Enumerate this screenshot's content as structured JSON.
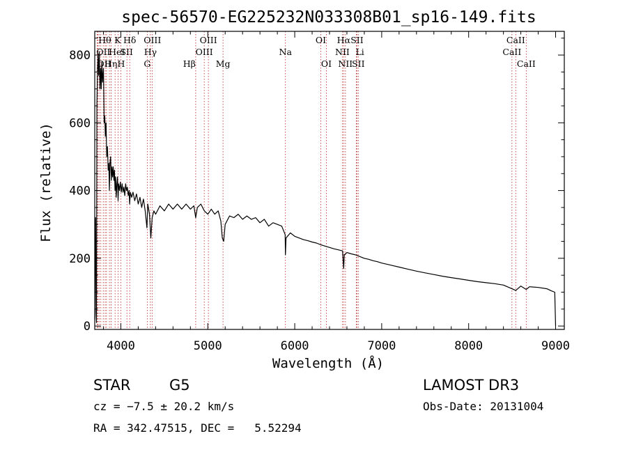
{
  "chart_data": {
    "type": "line",
    "title": "spec-56570-EG225232N033308B01_sp16-149.fits",
    "xlabel": "Wavelength (Å)",
    "ylabel": "Flux (relative)",
    "xlim": [
      3700,
      9100
    ],
    "ylim": [
      -10,
      870
    ],
    "x_ticks": [
      4000,
      5000,
      6000,
      7000,
      8000,
      9000
    ],
    "y_ticks": [
      0,
      200,
      400,
      600,
      800
    ],
    "grid": false,
    "series": [
      {
        "points": [
          [
            3700,
            20
          ],
          [
            3705,
            270
          ],
          [
            3710,
            320
          ],
          [
            3715,
            40
          ],
          [
            3720,
            10
          ],
          [
            3725,
            650
          ],
          [
            3732,
            760
          ],
          [
            3738,
            800
          ],
          [
            3745,
            740
          ],
          [
            3752,
            810
          ],
          [
            3760,
            700
          ],
          [
            3768,
            760
          ],
          [
            3775,
            700
          ],
          [
            3782,
            780
          ],
          [
            3790,
            720
          ],
          [
            3800,
            760
          ],
          [
            3808,
            600
          ],
          [
            3815,
            620
          ],
          [
            3822,
            560
          ],
          [
            3830,
            600
          ],
          [
            3838,
            500
          ],
          [
            3846,
            530
          ],
          [
            3855,
            460
          ],
          [
            3862,
            480
          ],
          [
            3868,
            400
          ],
          [
            3875,
            480
          ],
          [
            3883,
            500
          ],
          [
            3890,
            430
          ],
          [
            3898,
            470
          ],
          [
            3905,
            440
          ],
          [
            3912,
            470
          ],
          [
            3920,
            430
          ],
          [
            3927,
            460
          ],
          [
            3933,
            400
          ],
          [
            3940,
            440
          ],
          [
            3947,
            380
          ],
          [
            3955,
            420
          ],
          [
            3962,
            440
          ],
          [
            3968,
            370
          ],
          [
            3975,
            420
          ],
          [
            3985,
            400
          ],
          [
            3995,
            425
          ],
          [
            4005,
            395
          ],
          [
            4015,
            420
          ],
          [
            4025,
            395
          ],
          [
            4035,
            410
          ],
          [
            4045,
            385
          ],
          [
            4055,
            420
          ],
          [
            4065,
            400
          ],
          [
            4075,
            410
          ],
          [
            4085,
            385
          ],
          [
            4095,
            400
          ],
          [
            4101,
            360
          ],
          [
            4110,
            395
          ],
          [
            4125,
            380
          ],
          [
            4140,
            395
          ],
          [
            4160,
            370
          ],
          [
            4180,
            390
          ],
          [
            4200,
            360
          ],
          [
            4220,
            380
          ],
          [
            4240,
            350
          ],
          [
            4260,
            375
          ],
          [
            4280,
            340
          ],
          [
            4300,
            290
          ],
          [
            4310,
            360
          ],
          [
            4330,
            330
          ],
          [
            4345,
            260
          ],
          [
            4360,
            320
          ],
          [
            4380,
            340
          ],
          [
            4400,
            330
          ],
          [
            4450,
            355
          ],
          [
            4500,
            340
          ],
          [
            4550,
            360
          ],
          [
            4600,
            345
          ],
          [
            4650,
            360
          ],
          [
            4700,
            345
          ],
          [
            4750,
            360
          ],
          [
            4800,
            345
          ],
          [
            4840,
            355
          ],
          [
            4861,
            320
          ],
          [
            4880,
            350
          ],
          [
            4920,
            360
          ],
          [
            4960,
            340
          ],
          [
            5000,
            330
          ],
          [
            5040,
            345
          ],
          [
            5080,
            330
          ],
          [
            5120,
            340
          ],
          [
            5150,
            310
          ],
          [
            5167,
            260
          ],
          [
            5183,
            250
          ],
          [
            5200,
            300
          ],
          [
            5250,
            325
          ],
          [
            5300,
            320
          ],
          [
            5350,
            330
          ],
          [
            5400,
            315
          ],
          [
            5450,
            325
          ],
          [
            5500,
            315
          ],
          [
            5550,
            320
          ],
          [
            5600,
            305
          ],
          [
            5650,
            315
          ],
          [
            5700,
            295
          ],
          [
            5750,
            305
          ],
          [
            5800,
            300
          ],
          [
            5850,
            295
          ],
          [
            5890,
            270
          ],
          [
            5893,
            210
          ],
          [
            5900,
            260
          ],
          [
            5950,
            275
          ],
          [
            6000,
            265
          ],
          [
            6050,
            260
          ],
          [
            6100,
            255
          ],
          [
            6150,
            252
          ],
          [
            6200,
            248
          ],
          [
            6250,
            245
          ],
          [
            6300,
            240
          ],
          [
            6350,
            236
          ],
          [
            6400,
            232
          ],
          [
            6450,
            228
          ],
          [
            6500,
            225
          ],
          [
            6550,
            222
          ],
          [
            6563,
            170
          ],
          [
            6570,
            210
          ],
          [
            6600,
            217
          ],
          [
            6650,
            213
          ],
          [
            6700,
            210
          ],
          [
            6750,
            205
          ],
          [
            6800,
            200
          ],
          [
            6850,
            197
          ],
          [
            6900,
            193
          ],
          [
            6950,
            190
          ],
          [
            7000,
            186
          ],
          [
            7100,
            180
          ],
          [
            7200,
            174
          ],
          [
            7300,
            168
          ],
          [
            7400,
            162
          ],
          [
            7500,
            157
          ],
          [
            7600,
            152
          ],
          [
            7700,
            147
          ],
          [
            7800,
            143
          ],
          [
            7900,
            139
          ],
          [
            8000,
            135
          ],
          [
            8100,
            131
          ],
          [
            8200,
            128
          ],
          [
            8300,
            125
          ],
          [
            8400,
            121
          ],
          [
            8498,
            110
          ],
          [
            8542,
            105
          ],
          [
            8600,
            118
          ],
          [
            8662,
            108
          ],
          [
            8700,
            116
          ],
          [
            8800,
            114
          ],
          [
            8900,
            110
          ],
          [
            8950,
            104
          ],
          [
            8990,
            100
          ],
          [
            9000,
            0
          ]
        ]
      }
    ],
    "lines": [
      {
        "wavelength": 3727,
        "row": 1,
        "label": "OII",
        "anchor": "start"
      },
      {
        "wavelength": 3736,
        "row": 2,
        "label": "OII",
        "anchor": "start"
      },
      {
        "wavelength": 3750,
        "row": 0,
        "label": "Hθ",
        "anchor": "start"
      },
      {
        "wavelength": 3770,
        "row": 0,
        "label": "",
        "anchor": "start"
      },
      {
        "wavelength": 3798,
        "row": 0,
        "label": "",
        "anchor": "start"
      },
      {
        "wavelength": 3820,
        "row": 2,
        "label": "Hη",
        "anchor": "start"
      },
      {
        "wavelength": 3835,
        "row": 0,
        "label": "",
        "anchor": "start"
      },
      {
        "wavelength": 3869,
        "row": 1,
        "label": "HeI",
        "anchor": "start"
      },
      {
        "wavelength": 3889,
        "row": 0,
        "label": "",
        "anchor": "start"
      },
      {
        "wavelength": 3934,
        "row": 0,
        "label": "K",
        "anchor": "start"
      },
      {
        "wavelength": 3968,
        "row": 2,
        "label": "H",
        "anchor": "start"
      },
      {
        "wavelength": 4000,
        "row": 1,
        "label": "SII",
        "anchor": "start"
      },
      {
        "wavelength": 4070,
        "row": 0,
        "label": "",
        "anchor": "start"
      },
      {
        "wavelength": 4102,
        "row": 0,
        "label": "Hδ",
        "anchor": "middle"
      },
      {
        "wavelength": 4304,
        "row": 2,
        "label": "G",
        "anchor": "middle"
      },
      {
        "wavelength": 4340,
        "row": 1,
        "label": "Hγ",
        "anchor": "middle"
      },
      {
        "wavelength": 4363,
        "row": 0,
        "label": "OIII",
        "anchor": "middle"
      },
      {
        "wavelength": 4861,
        "row": 2,
        "label": "Hβ",
        "anchor": "end"
      },
      {
        "wavelength": 4959,
        "row": 1,
        "label": "OIII",
        "anchor": "middle"
      },
      {
        "wavelength": 5007,
        "row": 0,
        "label": "OIII",
        "anchor": "middle"
      },
      {
        "wavelength": 5175,
        "row": 2,
        "label": "Mg",
        "anchor": "middle"
      },
      {
        "wavelength": 5893,
        "row": 1,
        "label": "Na",
        "anchor": "middle"
      },
      {
        "wavelength": 6300,
        "row": 0,
        "label": "OI",
        "anchor": "middle"
      },
      {
        "wavelength": 6364,
        "row": 2,
        "label": "OI",
        "anchor": "middle"
      },
      {
        "wavelength": 6548,
        "row": 1,
        "label": "NII",
        "anchor": "middle"
      },
      {
        "wavelength": 6563,
        "row": 0,
        "label": "Hα",
        "anchor": "middle"
      },
      {
        "wavelength": 6583,
        "row": 2,
        "label": "NII",
        "anchor": "middle"
      },
      {
        "wavelength": 6708,
        "row": 1,
        "label": "Li",
        "anchor": "start"
      },
      {
        "wavelength": 6716,
        "row": 0,
        "label": "SII",
        "anchor": "middle"
      },
      {
        "wavelength": 6731,
        "row": 2,
        "label": "SII",
        "anchor": "middle"
      },
      {
        "wavelength": 8498,
        "row": 1,
        "label": "CaII",
        "anchor": "middle"
      },
      {
        "wavelength": 8542,
        "row": 0,
        "label": "CaII",
        "anchor": "middle"
      },
      {
        "wavelength": 8662,
        "row": 2,
        "label": "CaII",
        "anchor": "middle"
      }
    ],
    "line_color": "#b22222",
    "spectrum_color": "#000000"
  },
  "info": {
    "object_class": "STAR",
    "subclass": "G5",
    "survey": "LAMOST DR3",
    "redshift": "cz = −7.5 ± 20.2 km/s",
    "obs_date": "Obs-Date: 20131004",
    "coords": "RA = 342.47515, DEC =   5.52294"
  }
}
